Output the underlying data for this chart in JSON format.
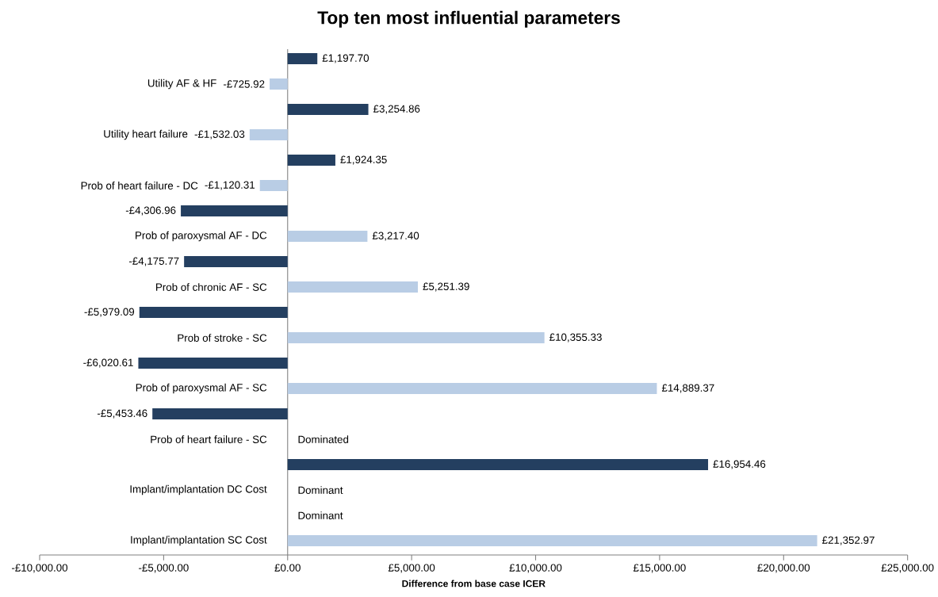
{
  "chart_data": {
    "type": "bar",
    "orientation": "horizontal",
    "title": "Top ten most influential parameters",
    "xlabel": "Difference from base case ICER",
    "categories": [
      "Utility AF & HF",
      "Utility heart failure",
      "Prob of heart failure - DC",
      "Prob of paroxysmal AF - DC",
      "Prob of chronic AF - SC",
      "Prob of stroke - SC",
      "Prob of paroxysmal AF - SC",
      "Prob of heart failure - SC",
      "Implant/implantation DC Cost",
      "Implant/implantation SC Cost"
    ],
    "series": [
      {
        "color": "#243f60",
        "values": [
          1197.7,
          3254.86,
          1924.35,
          -4306.96,
          -4175.77,
          -5979.09,
          -6020.61,
          -5453.46,
          16954.46,
          null
        ],
        "value_labels": [
          "£1,197.70",
          "£3,254.86",
          "£1,924.35",
          "-£4,306.96",
          "-£4,175.77",
          "-£5,979.09",
          "-£6,020.61",
          "-£5,453.46",
          "£16,954.46",
          "Dominant"
        ]
      },
      {
        "color": "#b9cde5",
        "values": [
          -725.92,
          -1532.03,
          -1120.31,
          3217.4,
          5251.39,
          10355.33,
          14889.37,
          null,
          null,
          21352.97
        ],
        "value_labels": [
          "-£725.92",
          "-£1,532.03",
          "-£1,120.31",
          "£3,217.40",
          "£5,251.39",
          "£10,355.33",
          "£14,889.37",
          "Dominated",
          "Dominant",
          "£21,352.97"
        ]
      }
    ],
    "xlim": [
      -10000,
      25000
    ],
    "xticks": [
      {
        "value": -10000,
        "label": "-£10,000.00"
      },
      {
        "value": -5000,
        "label": "-£5,000.00"
      },
      {
        "value": 0,
        "label": "£0.00"
      },
      {
        "value": 5000,
        "label": "£5,000.00"
      },
      {
        "value": 10000,
        "label": "£10,000.00"
      },
      {
        "value": 15000,
        "label": "£15,000.00"
      },
      {
        "value": 20000,
        "label": "£20,000.00"
      },
      {
        "value": 25000,
        "label": "£25,000.00"
      }
    ]
  }
}
